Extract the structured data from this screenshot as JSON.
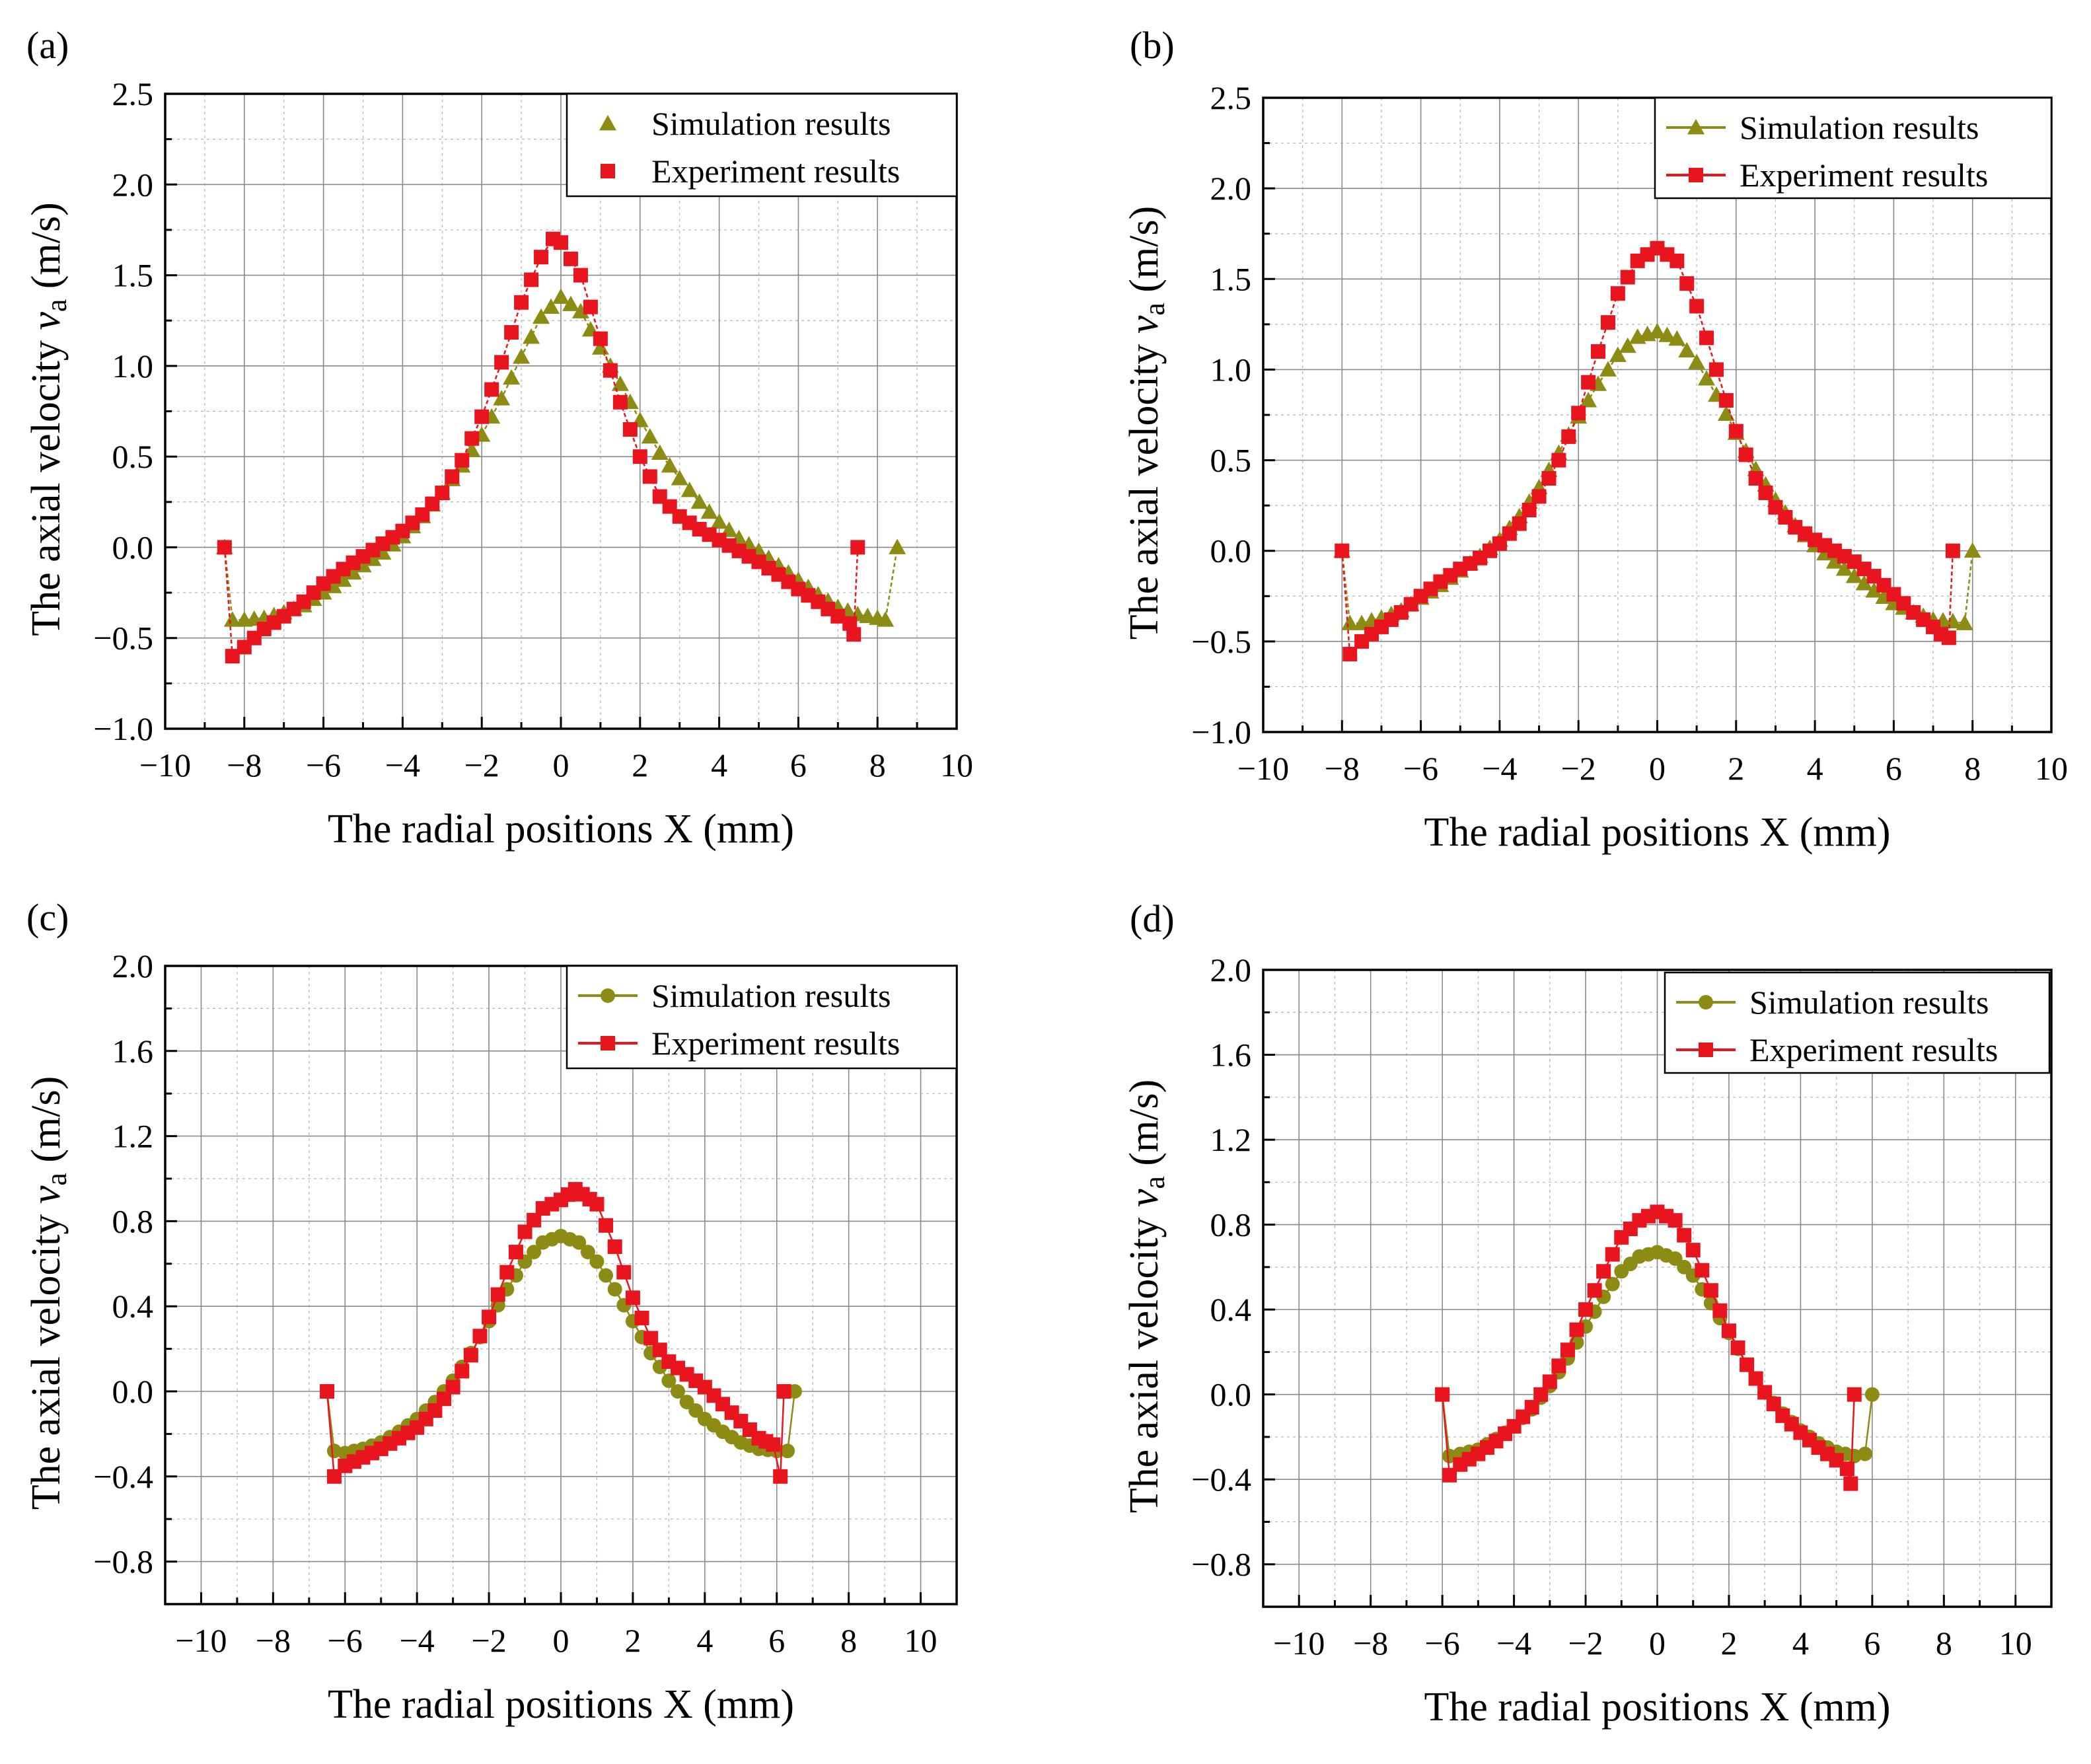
{
  "figure": {
    "colors": {
      "simulation": "#8c8c14",
      "experiment": "#e8141e"
    },
    "xlabel": "The radial positions X (mm)",
    "ylabel_main": "The axial velocity ",
    "ylabel_var": "v",
    "ylabel_sub": "a",
    "ylabel_unit": " (m/s)"
  },
  "chart_data": [
    {
      "type": "line",
      "panel_label": "(a)",
      "xlim": [
        -10,
        10
      ],
      "ylim": [
        -1.0,
        2.5
      ],
      "xticks": [
        "-10",
        "-8",
        "-6",
        "-4",
        "-2",
        "0",
        "2",
        "4",
        "6",
        "8",
        "10"
      ],
      "yticks": [
        "-1.0",
        "-0.5",
        "0.0",
        "0.5",
        "1.0",
        "1.5",
        "2.0",
        "2.5"
      ],
      "grid": true,
      "legend_placement": "top-right",
      "legend_style": "markers",
      "sim_marker": "triangle",
      "series": [
        {
          "name": "Simulation results",
          "x": [
            -8.5,
            -8.3,
            -8.0,
            -7.5,
            -7.0,
            -6.5,
            -6.0,
            -5.5,
            -5.0,
            -4.5,
            -4.0,
            -3.5,
            -3.0,
            -2.5,
            -2.0,
            -1.5,
            -1.0,
            -0.5,
            0.0,
            0.5,
            1.0,
            1.5,
            2.0,
            2.5,
            3.0,
            3.5,
            4.0,
            4.5,
            5.0,
            5.5,
            6.0,
            6.5,
            7.0,
            7.5,
            8.0,
            8.2,
            8.5
          ],
          "y": [
            0.0,
            -0.4,
            -0.4,
            -0.39,
            -0.36,
            -0.32,
            -0.25,
            -0.18,
            -0.1,
            -0.03,
            0.06,
            0.17,
            0.3,
            0.45,
            0.62,
            0.82,
            1.05,
            1.27,
            1.38,
            1.3,
            1.1,
            0.9,
            0.7,
            0.52,
            0.38,
            0.25,
            0.14,
            0.05,
            -0.02,
            -0.1,
            -0.18,
            -0.26,
            -0.33,
            -0.37,
            -0.39,
            -0.4,
            0.0
          ]
        },
        {
          "name": "Experiment results",
          "x": [
            -8.5,
            -8.3,
            -8.0,
            -7.5,
            -7.0,
            -6.5,
            -6.0,
            -5.5,
            -5.0,
            -4.5,
            -4.0,
            -3.5,
            -3.0,
            -2.5,
            -2.0,
            -1.5,
            -1.0,
            -0.5,
            -0.2,
            0.0,
            0.5,
            1.0,
            1.5,
            2.0,
            2.5,
            3.0,
            3.5,
            4.0,
            4.5,
            5.0,
            5.5,
            6.0,
            6.5,
            7.0,
            7.3,
            7.4,
            7.5
          ],
          "y": [
            0.0,
            -0.6,
            -0.55,
            -0.45,
            -0.38,
            -0.3,
            -0.2,
            -0.12,
            -0.05,
            0.02,
            0.09,
            0.18,
            0.3,
            0.48,
            0.72,
            1.02,
            1.35,
            1.6,
            1.7,
            1.68,
            1.5,
            1.15,
            0.8,
            0.5,
            0.28,
            0.17,
            0.1,
            0.04,
            -0.02,
            -0.08,
            -0.15,
            -0.23,
            -0.3,
            -0.38,
            -0.42,
            -0.48,
            0.0
          ]
        }
      ]
    },
    {
      "type": "line",
      "panel_label": "(b)",
      "xlim": [
        -10,
        10
      ],
      "ylim": [
        -1.0,
        2.5
      ],
      "xticks": [
        "-10",
        "-8",
        "-6",
        "-4",
        "-2",
        "0",
        "2",
        "4",
        "6",
        "8",
        "10"
      ],
      "yticks": [
        "-1.0",
        "-0.5",
        "0.0",
        "0.5",
        "1.0",
        "1.5",
        "2.0",
        "2.5"
      ],
      "grid": true,
      "legend_placement": "top-right",
      "legend_style": "markers-line",
      "sim_marker": "triangle",
      "series": [
        {
          "name": "Simulation results",
          "x": [
            -8.0,
            -7.8,
            -7.5,
            -7.0,
            -6.5,
            -6.0,
            -5.5,
            -5.0,
            -4.5,
            -4.0,
            -3.5,
            -3.0,
            -2.5,
            -2.0,
            -1.5,
            -1.0,
            -0.5,
            0.0,
            0.5,
            1.0,
            1.5,
            2.0,
            2.5,
            3.0,
            3.5,
            4.0,
            4.5,
            5.0,
            5.5,
            6.0,
            6.5,
            7.0,
            7.5,
            7.8,
            8.0
          ],
          "y": [
            0.0,
            -0.4,
            -0.4,
            -0.37,
            -0.33,
            -0.26,
            -0.19,
            -0.11,
            -0.03,
            0.06,
            0.19,
            0.35,
            0.54,
            0.74,
            0.92,
            1.08,
            1.18,
            1.21,
            1.17,
            1.04,
            0.86,
            0.65,
            0.45,
            0.28,
            0.14,
            0.03,
            -0.06,
            -0.14,
            -0.22,
            -0.29,
            -0.34,
            -0.38,
            -0.39,
            -0.4,
            0.0
          ]
        },
        {
          "name": "Experiment results",
          "x": [
            -8.0,
            -7.8,
            -7.5,
            -7.0,
            -6.5,
            -6.0,
            -5.5,
            -5.0,
            -4.5,
            -4.0,
            -3.5,
            -3.0,
            -2.5,
            -2.0,
            -1.5,
            -1.0,
            -0.5,
            0.0,
            0.5,
            1.0,
            1.5,
            2.0,
            2.5,
            3.0,
            3.5,
            4.0,
            4.5,
            5.0,
            5.5,
            6.0,
            6.5,
            7.0,
            7.2,
            7.4,
            7.5
          ],
          "y": [
            0.0,
            -0.57,
            -0.5,
            -0.42,
            -0.34,
            -0.25,
            -0.17,
            -0.1,
            -0.04,
            0.04,
            0.15,
            0.3,
            0.5,
            0.76,
            1.1,
            1.42,
            1.6,
            1.67,
            1.6,
            1.35,
            1.0,
            0.66,
            0.4,
            0.24,
            0.13,
            0.06,
            0.0,
            -0.06,
            -0.14,
            -0.24,
            -0.34,
            -0.42,
            -0.46,
            -0.48,
            0.0
          ]
        }
      ]
    },
    {
      "type": "line",
      "panel_label": "(c)",
      "xlim": [
        -11,
        11
      ],
      "ylim": [
        -1.0,
        2.0
      ],
      "xticks": [
        "-10",
        "-8",
        "-6",
        "-4",
        "-2",
        "0",
        "2",
        "4",
        "6",
        "8",
        "10"
      ],
      "yticks": [
        "-0.8",
        "-0.4",
        "0.0",
        "0.4",
        "0.8",
        "1.2",
        "1.6",
        "2.0"
      ],
      "grid": true,
      "legend_placement": "top-right",
      "legend_style": "markers-line",
      "sim_marker": "circle",
      "series": [
        {
          "name": "Simulation results",
          "x": [
            -6.5,
            -6.3,
            -6.0,
            -5.5,
            -5.0,
            -4.5,
            -4.0,
            -3.5,
            -3.0,
            -2.5,
            -2.0,
            -1.5,
            -1.0,
            -0.5,
            0.0,
            0.5,
            1.0,
            1.5,
            2.0,
            2.5,
            3.0,
            3.5,
            4.0,
            4.5,
            5.0,
            5.5,
            6.0,
            6.3,
            6.5
          ],
          "y": [
            0.0,
            -0.28,
            -0.29,
            -0.27,
            -0.24,
            -0.19,
            -0.13,
            -0.05,
            0.05,
            0.18,
            0.33,
            0.48,
            0.61,
            0.7,
            0.73,
            0.7,
            0.61,
            0.48,
            0.33,
            0.18,
            0.05,
            -0.05,
            -0.13,
            -0.19,
            -0.24,
            -0.27,
            -0.28,
            -0.28,
            0.0
          ]
        },
        {
          "name": "Experiment results",
          "x": [
            -6.5,
            -6.3,
            -6.0,
            -5.5,
            -5.0,
            -4.5,
            -4.0,
            -3.5,
            -3.0,
            -2.5,
            -2.0,
            -1.5,
            -1.0,
            -0.5,
            0.0,
            0.4,
            1.0,
            1.5,
            2.0,
            2.5,
            3.0,
            3.5,
            4.0,
            4.5,
            5.0,
            5.5,
            5.9,
            6.1,
            6.2
          ],
          "y": [
            0.0,
            -0.4,
            -0.35,
            -0.31,
            -0.27,
            -0.22,
            -0.17,
            -0.09,
            0.02,
            0.17,
            0.35,
            0.56,
            0.75,
            0.86,
            0.9,
            0.95,
            0.88,
            0.68,
            0.44,
            0.25,
            0.14,
            0.08,
            0.02,
            -0.06,
            -0.14,
            -0.22,
            -0.25,
            -0.4,
            0.0
          ]
        }
      ]
    },
    {
      "type": "line",
      "panel_label": "(d)",
      "xlim": [
        -11,
        11
      ],
      "ylim": [
        -1.0,
        2.0
      ],
      "xticks": [
        "-10",
        "-8",
        "-6",
        "-4",
        "-2",
        "0",
        "2",
        "4",
        "6",
        "8",
        "10"
      ],
      "yticks": [
        "-0.8",
        "-0.4",
        "0.0",
        "0.4",
        "0.8",
        "1.2",
        "1.6",
        "2.0"
      ],
      "grid": true,
      "legend_placement": "top-right",
      "legend_style": "markers-line",
      "sim_marker": "circle",
      "series": [
        {
          "name": "Simulation results",
          "x": [
            -6.0,
            -5.8,
            -5.5,
            -5.0,
            -4.5,
            -4.0,
            -3.5,
            -3.0,
            -2.5,
            -2.0,
            -1.5,
            -1.0,
            -0.5,
            0.0,
            0.5,
            1.0,
            1.5,
            2.0,
            2.5,
            3.0,
            3.5,
            4.0,
            4.5,
            5.0,
            5.5,
            5.8,
            6.0
          ],
          "y": [
            0.0,
            -0.29,
            -0.28,
            -0.26,
            -0.21,
            -0.15,
            -0.07,
            0.04,
            0.17,
            0.32,
            0.46,
            0.58,
            0.65,
            0.67,
            0.64,
            0.56,
            0.43,
            0.29,
            0.14,
            0.01,
            -0.09,
            -0.17,
            -0.23,
            -0.27,
            -0.29,
            -0.28,
            0.0
          ]
        },
        {
          "name": "Experiment results",
          "x": [
            -6.0,
            -5.8,
            -5.5,
            -5.0,
            -4.5,
            -4.0,
            -3.5,
            -3.0,
            -2.5,
            -2.0,
            -1.5,
            -1.0,
            -0.5,
            0.0,
            0.5,
            1.0,
            1.5,
            2.0,
            2.5,
            3.0,
            3.5,
            4.0,
            4.5,
            5.0,
            5.3,
            5.4,
            5.5
          ],
          "y": [
            0.0,
            -0.38,
            -0.33,
            -0.28,
            -0.22,
            -0.15,
            -0.06,
            0.06,
            0.21,
            0.4,
            0.58,
            0.74,
            0.82,
            0.86,
            0.82,
            0.68,
            0.49,
            0.3,
            0.14,
            0.01,
            -0.1,
            -0.18,
            -0.25,
            -0.31,
            -0.35,
            -0.42,
            0.0
          ]
        }
      ]
    }
  ]
}
